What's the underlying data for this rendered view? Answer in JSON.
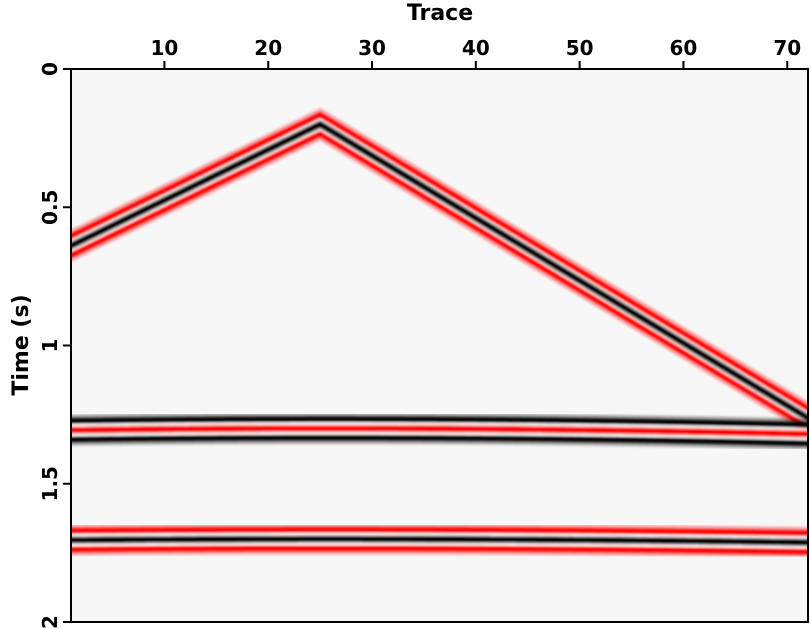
{
  "chart_data": {
    "type": "seismic-section",
    "xlabel": "Trace",
    "ylabel": "Time (s)",
    "x_axis_position": "top",
    "y_inverted": true,
    "xlim": [
      1,
      72
    ],
    "ylim": [
      0,
      2
    ],
    "xticks": [
      10,
      20,
      30,
      40,
      50,
      60,
      70
    ],
    "yticks": [
      0,
      0.5,
      1,
      1.5,
      2
    ],
    "ytick_labels": [
      "0",
      "0.5",
      "1",
      "1.5",
      "2"
    ],
    "background_color": "#f7f7f7",
    "positive_color": "#000000",
    "negative_color": "#ff0000",
    "events": [
      {
        "name": "linear-event",
        "shape": "linear",
        "apex_trace": 25,
        "apex_time": 0.2,
        "slope_left_s_per_trace": 0.0183,
        "slope_right_s_per_trace": 0.0226,
        "center_color": "black",
        "side_color": "red"
      },
      {
        "name": "hyperbolic-event-1",
        "shape": "hyperbola",
        "apex_trace": 26,
        "apex_time": 1.3,
        "velocity_traces_per_s": 200,
        "center_color": "red",
        "side_color": "black"
      },
      {
        "name": "hyperbolic-event-2",
        "shape": "hyperbola",
        "apex_trace": 26,
        "apex_time": 1.7,
        "velocity_traces_per_s": 225,
        "center_color": "black",
        "side_color": "red"
      }
    ]
  }
}
